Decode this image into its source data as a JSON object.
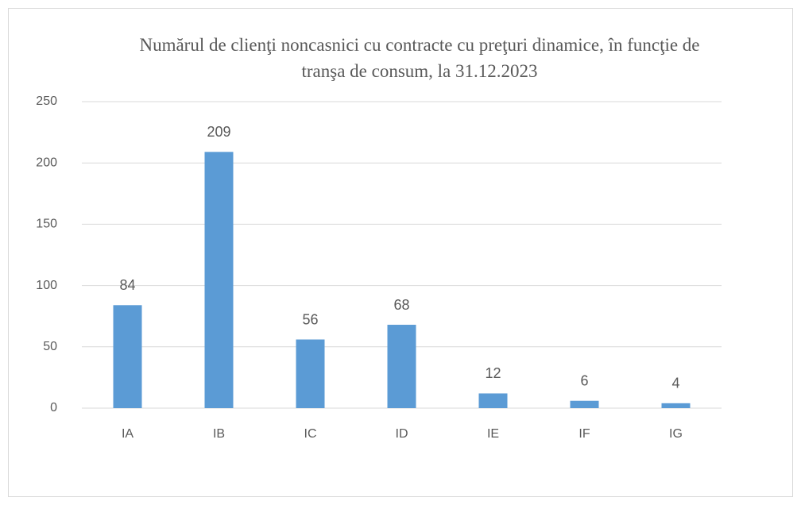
{
  "chart_data": {
    "type": "bar",
    "title": "Numărul de clienţi noncasnici cu contracte cu preţuri dinamice, în funcţie de tranşa de consum, la 31.12.2023",
    "categories": [
      "IA",
      "IB",
      "IC",
      "ID",
      "IE",
      "IF",
      "IG"
    ],
    "values": [
      84,
      209,
      56,
      68,
      12,
      6,
      4
    ],
    "color": "#5b9bd5",
    "ylim": [
      0,
      250
    ],
    "yticks": [
      0,
      50,
      100,
      150,
      200,
      250
    ],
    "grid": true
  }
}
